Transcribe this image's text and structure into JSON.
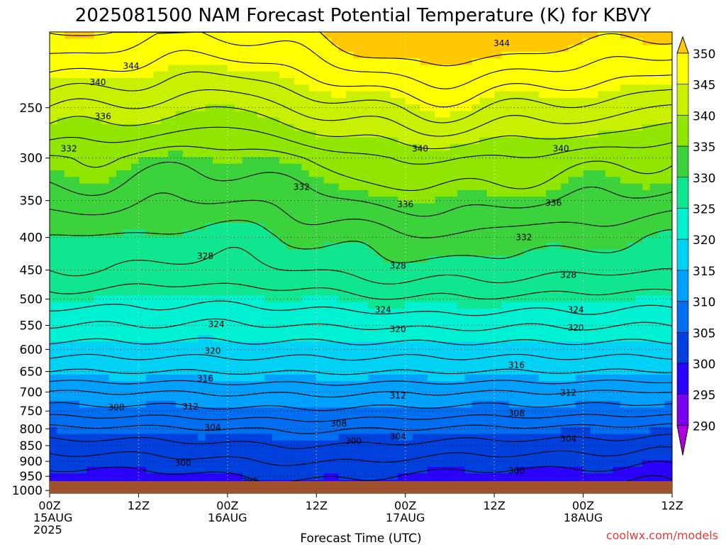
{
  "chart_data": {
    "type": "heatmap",
    "title": "2025081500 NAM Forecast Potential Temperature (K) for KBVY",
    "xlabel": "Forecast Time (UTC)",
    "ylabel": "",
    "credit": "coolwx.com/models",
    "credit_color": "#e03a3a",
    "y_ticks": [
      "250",
      "300",
      "350",
      "400",
      "450",
      "500",
      "550",
      "600",
      "650",
      "700",
      "750",
      "800",
      "850",
      "900",
      "950",
      "1000"
    ],
    "y_tick_values": [
      250,
      300,
      350,
      400,
      450,
      500,
      550,
      600,
      650,
      700,
      750,
      800,
      850,
      900,
      950,
      1000
    ],
    "y_range": [
      190,
      1010
    ],
    "y_scale": "log",
    "x_ticks": [
      {
        "hour": 0,
        "lines": [
          "00Z",
          "15AUG",
          "2025"
        ]
      },
      {
        "hour": 12,
        "lines": [
          "12Z"
        ]
      },
      {
        "hour": 24,
        "lines": [
          "00Z",
          "16AUG"
        ]
      },
      {
        "hour": 36,
        "lines": [
          "12Z"
        ]
      },
      {
        "hour": 48,
        "lines": [
          "00Z",
          "17AUG"
        ]
      },
      {
        "hour": 60,
        "lines": [
          "12Z"
        ]
      },
      {
        "hour": 72,
        "lines": [
          "00Z",
          "18AUG"
        ]
      },
      {
        "hour": 84,
        "lines": [
          "12Z"
        ]
      }
    ],
    "x_range": [
      0,
      84
    ],
    "grid": true,
    "colorbar": {
      "labels": [
        "350",
        "345",
        "340",
        "335",
        "330",
        "325",
        "320",
        "315",
        "310",
        "305",
        "300",
        "295",
        "290"
      ],
      "bands": [
        {
          "low": 345,
          "high": 350,
          "color": "#ffff00"
        },
        {
          "low": 340,
          "high": 345,
          "color": "#c8f000"
        },
        {
          "low": 335,
          "high": 340,
          "color": "#90e600"
        },
        {
          "low": 330,
          "high": 335,
          "color": "#3cd23c"
        },
        {
          "low": 325,
          "high": 330,
          "color": "#10e690"
        },
        {
          "low": 320,
          "high": 325,
          "color": "#00f0d2"
        },
        {
          "low": 315,
          "high": 320,
          "color": "#00d2f5"
        },
        {
          "low": 310,
          "high": 315,
          "color": "#00a0ff"
        },
        {
          "low": 305,
          "high": 310,
          "color": "#006ef0"
        },
        {
          "low": 300,
          "high": 305,
          "color": "#0040dc"
        },
        {
          "low": 295,
          "high": 300,
          "color": "#2a00ff"
        },
        {
          "low": 290,
          "high": 295,
          "color": "#7a00f0"
        }
      ],
      "top_color": "#ffc800",
      "bottom_color": "#b000e0"
    },
    "ground_color": "#a0522d",
    "contour_labels": [
      {
        "value": "344",
        "hour": 11.0,
        "hpa": 215
      },
      {
        "value": "340",
        "hour": 6.5,
        "hpa": 228
      },
      {
        "value": "336",
        "hour": 7.2,
        "hpa": 258
      },
      {
        "value": "332",
        "hour": 2.6,
        "hpa": 290
      },
      {
        "value": "332",
        "hour": 34.0,
        "hpa": 333
      },
      {
        "value": "328",
        "hour": 21.0,
        "hpa": 428
      },
      {
        "value": "324",
        "hour": 22.5,
        "hpa": 548
      },
      {
        "value": "320",
        "hour": 22.0,
        "hpa": 603
      },
      {
        "value": "316",
        "hour": 21.0,
        "hpa": 667
      },
      {
        "value": "312",
        "hour": 19.0,
        "hpa": 738
      },
      {
        "value": "308",
        "hour": 9.0,
        "hpa": 740
      },
      {
        "value": "304",
        "hour": 22.0,
        "hpa": 796
      },
      {
        "value": "300",
        "hour": 18.0,
        "hpa": 905
      },
      {
        "value": "298",
        "hour": 27.0,
        "hpa": 967
      },
      {
        "value": "340",
        "hour": 50.0,
        "hpa": 290
      },
      {
        "value": "336",
        "hour": 48.0,
        "hpa": 355
      },
      {
        "value": "328",
        "hour": 47.0,
        "hpa": 443
      },
      {
        "value": "324",
        "hour": 45.0,
        "hpa": 520
      },
      {
        "value": "320",
        "hour": 47.0,
        "hpa": 558
      },
      {
        "value": "312",
        "hour": 47.0,
        "hpa": 709
      },
      {
        "value": "308",
        "hour": 39.0,
        "hpa": 785
      },
      {
        "value": "304",
        "hour": 47.0,
        "hpa": 822
      },
      {
        "value": "300",
        "hour": 41.0,
        "hpa": 836
      },
      {
        "value": "296",
        "hour": 50.0,
        "hpa": 1000
      },
      {
        "value": "344",
        "hour": 61.0,
        "hpa": 198
      },
      {
        "value": "340",
        "hour": 69.0,
        "hpa": 290
      },
      {
        "value": "336",
        "hour": 68.0,
        "hpa": 353
      },
      {
        "value": "332",
        "hour": 64.0,
        "hpa": 400
      },
      {
        "value": "328",
        "hour": 70.0,
        "hpa": 458
      },
      {
        "value": "324",
        "hour": 71.0,
        "hpa": 520
      },
      {
        "value": "320",
        "hour": 71.0,
        "hpa": 555
      },
      {
        "value": "316",
        "hour": 63.0,
        "hpa": 635
      },
      {
        "value": "312",
        "hour": 70.0,
        "hpa": 702
      },
      {
        "value": "308",
        "hour": 63.0,
        "hpa": 756
      },
      {
        "value": "304",
        "hour": 70.0,
        "hpa": 830
      },
      {
        "value": "300",
        "hour": 63.0,
        "hpa": 932
      },
      {
        "value": "300",
        "hour": 73.0,
        "hpa": 985
      }
    ]
  }
}
